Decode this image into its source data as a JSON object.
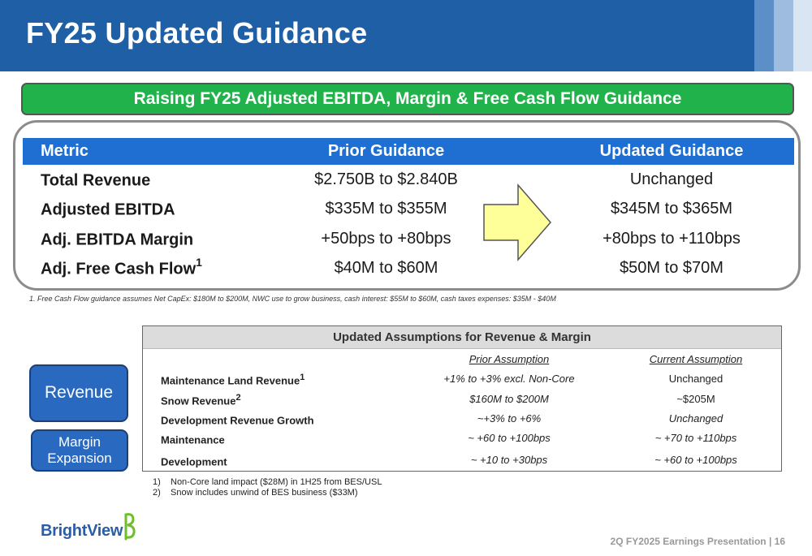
{
  "header": {
    "title": "FY25 Updated Guidance"
  },
  "banner": {
    "text": "Raising FY25 Adjusted EBITDA, Margin & Free Cash Flow Guidance"
  },
  "guidance_table": {
    "headers": [
      "Metric",
      "Prior Guidance",
      "Updated Guidance"
    ],
    "rows": [
      {
        "metric": "Total Revenue",
        "sup": "",
        "prior": "$2.750B to $2.840B",
        "updated": "Unchanged"
      },
      {
        "metric": "Adjusted EBITDA",
        "sup": "",
        "prior": "$335M to $355M",
        "updated": "$345M to $365M"
      },
      {
        "metric": "Adj. EBITDA Margin",
        "sup": "",
        "prior": "+50bps to +80bps",
        "updated": "+80bps to +110bps"
      },
      {
        "metric": "Adj. Free Cash Flow",
        "sup": "1",
        "prior": "$40M to $60M",
        "updated": "$50M to $70M"
      }
    ],
    "arrow_icon": "right-arrow-icon",
    "arrow_color": "#ffff99"
  },
  "footnote": "1. Free Cash Flow guidance assumes Net CapEx: $180M to $200M, NWC use to grow business, cash interest: $55M to $60M, cash taxes expenses: $35M - $40M",
  "assumptions": {
    "title": "Updated Assumptions for Revenue & Margin",
    "col_prior": "Prior Assumption",
    "col_current": "Current Assumption",
    "rows": [
      {
        "label": "Maintenance Land Revenue",
        "sup": "1",
        "prior": "+1% to +3% excl. Non-Core",
        "current": "Unchanged"
      },
      {
        "label": "Snow Revenue",
        "sup": "2",
        "prior": "$160M to $200M",
        "current": "~$205M"
      },
      {
        "label": "Development Revenue Growth",
        "sup": "",
        "prior": "~+3% to +6%",
        "current": "Unchanged"
      },
      {
        "label": "Maintenance",
        "sup": "",
        "prior": "~ +60 to +100bps",
        "current": "~ +70 to +110bps"
      },
      {
        "label": "Development",
        "sup": "",
        "prior": "~ +10 to +30bps",
        "current": "~ +60 to +100bps"
      }
    ]
  },
  "side_labels": {
    "revenue": "Revenue",
    "margin_line1": "Margin",
    "margin_line2": "Expansion"
  },
  "notes": [
    {
      "num": "1)",
      "text": "Non-Core land impact ($28M) in 1H25 from BES/USL"
    },
    {
      "num": "2)",
      "text": "Snow includes unwind of BES business ($33M)"
    }
  ],
  "logo": {
    "text": "BrightView"
  },
  "footer": {
    "text": "2Q FY2025 Earnings Presentation | 16"
  },
  "colors": {
    "header": "#1f5fa6",
    "banner": "#22b24c",
    "table_header": "#1f6fd2",
    "button": "#2a69c0"
  }
}
